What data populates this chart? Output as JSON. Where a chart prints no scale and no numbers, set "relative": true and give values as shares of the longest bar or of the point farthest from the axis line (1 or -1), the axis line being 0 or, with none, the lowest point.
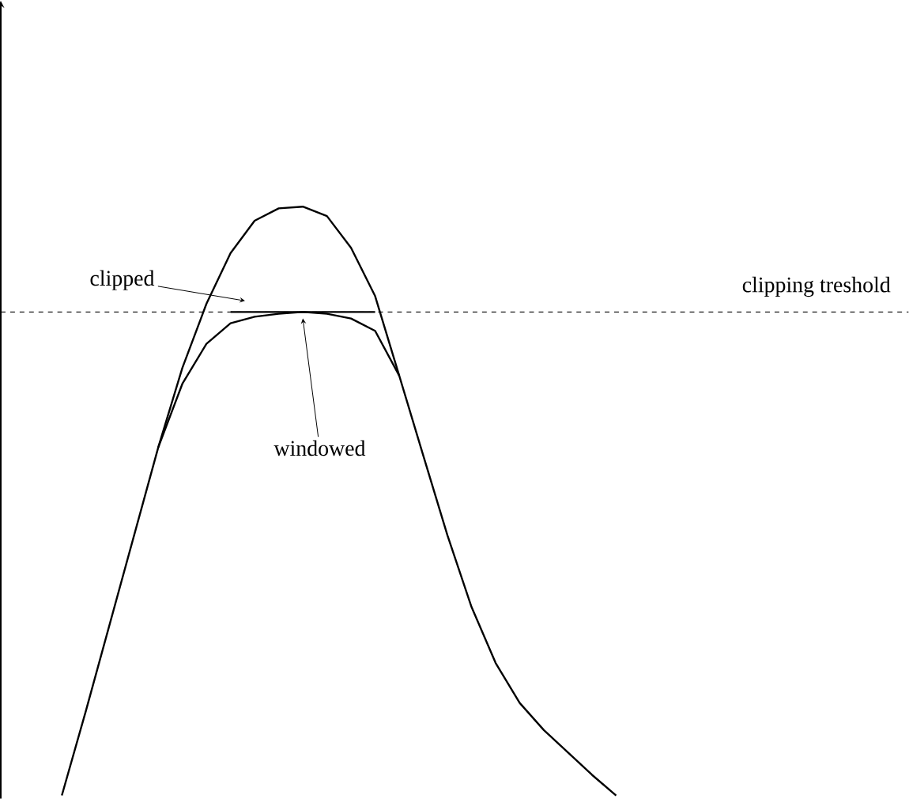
{
  "chart_data": {
    "type": "line",
    "relative": true,
    "categories": [
      null,
      null,
      null,
      null,
      null,
      null,
      null,
      null,
      null,
      null,
      null,
      null,
      null,
      null,
      null,
      null,
      null,
      null,
      null,
      null,
      null,
      null,
      null,
      null
    ],
    "series": [
      {
        "color": "#000000",
        "values": [
          0,
          0.144,
          0.293,
          0.442,
          0.591,
          0.726,
          0.835,
          0.921,
          0.976,
          0.997,
          1,
          0.984,
          0.93,
          0.848,
          0.713,
          0.577,
          0.442,
          0.32,
          0.225,
          0.157,
          0.111,
          0.073,
          0.035,
          0
        ]
      },
      {
        "color": "#000000",
        "values": [
          null,
          null,
          null,
          null,
          null,
          null,
          null,
          0.821,
          0.821,
          0.821,
          0.821,
          0.821,
          0.821,
          0.821,
          null,
          null,
          null,
          null,
          null,
          null,
          null,
          null,
          null,
          null
        ]
      },
      {
        "color": "#000000",
        "values": [
          null,
          null,
          null,
          null,
          0.591,
          0.699,
          0.767,
          0.802,
          0.813,
          0.818,
          0.821,
          0.818,
          0.81,
          0.789,
          0.713,
          null,
          null,
          null,
          null,
          null,
          null,
          null,
          null,
          null
        ]
      }
    ],
    "ref_lines": [
      {
        "axis": "y",
        "value": 0.821,
        "label": "clipping treshold",
        "color": "#000000",
        "line_style": "dashed"
      }
    ],
    "annotations": [
      "clipped",
      "windowed"
    ],
    "line_style": "solid",
    "marker": "none"
  }
}
